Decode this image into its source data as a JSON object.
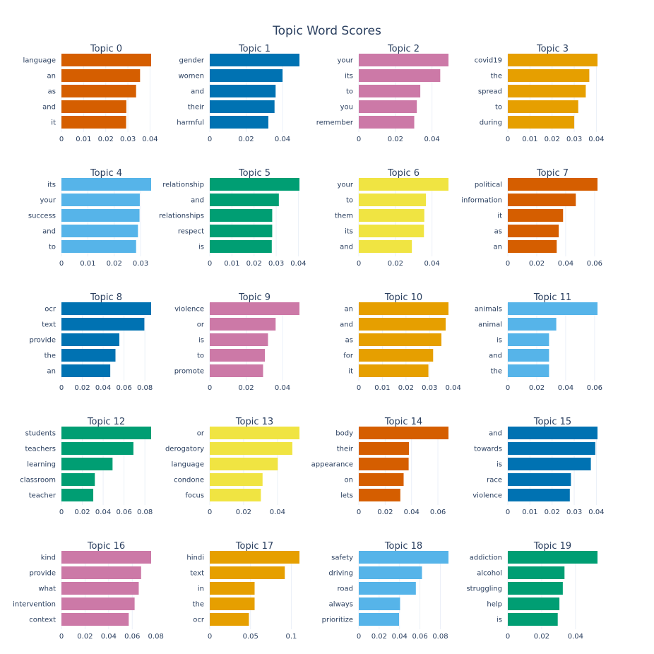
{
  "chart_data": {
    "title": "Topic Word Scores",
    "type": "bar",
    "orientation": "horizontal",
    "grid": true,
    "subplots": [
      {
        "title": "Topic 0",
        "color": "#D55E00",
        "words": [
          "language",
          "an",
          "as",
          "and",
          "it"
        ],
        "values": [
          0.0405,
          0.0355,
          0.0337,
          0.0293,
          0.0292
        ],
        "xlim": [
          0,
          0.0405
        ],
        "xticks": [
          0,
          0.01,
          0.02,
          0.03,
          0.04
        ],
        "xtick_labels": [
          "0",
          "0.01",
          "0.02",
          "0.03",
          "0.04"
        ]
      },
      {
        "title": "Topic 1",
        "color": "#0072B2",
        "words": [
          "gender",
          "women",
          "and",
          "their",
          "harmful"
        ],
        "values": [
          0.0493,
          0.04,
          0.0362,
          0.0356,
          0.0322
        ],
        "xlim": [
          0,
          0.0493
        ],
        "xticks": [
          0,
          0.02,
          0.04
        ],
        "xtick_labels": [
          "0",
          "0.02",
          "0.04"
        ]
      },
      {
        "title": "Topic 2",
        "color": "#CC79A7",
        "words": [
          "your",
          "its",
          "to",
          "you",
          "remember"
        ],
        "values": [
          0.049,
          0.0445,
          0.0336,
          0.0317,
          0.0303
        ],
        "xlim": [
          0,
          0.049
        ],
        "xticks": [
          0,
          0.02,
          0.04
        ],
        "xtick_labels": [
          "0",
          "0.02",
          "0.04"
        ]
      },
      {
        "title": "Topic 3",
        "color": "#E69F00",
        "words": [
          "covid19",
          "the",
          "spread",
          "to",
          "during"
        ],
        "values": [
          0.0405,
          0.0368,
          0.0352,
          0.0318,
          0.03
        ],
        "xlim": [
          0,
          0.0405
        ],
        "xticks": [
          0,
          0.01,
          0.02,
          0.03,
          0.04
        ],
        "xtick_labels": [
          "0",
          "0.01",
          "0.02",
          "0.03",
          "0.04"
        ]
      },
      {
        "title": "Topic 4",
        "color": "#56B4E9",
        "words": [
          "its",
          "your",
          "success",
          "and",
          "to"
        ],
        "values": [
          0.034,
          0.0297,
          0.0296,
          0.029,
          0.0283
        ],
        "xlim": [
          0,
          0.034
        ],
        "xticks": [
          0,
          0.01,
          0.02,
          0.03
        ],
        "xtick_labels": [
          "0",
          "0.01",
          "0.02",
          "0.03"
        ]
      },
      {
        "title": "Topic 5",
        "color": "#009E73",
        "words": [
          "relationship",
          "and",
          "relationships",
          "respect",
          "is"
        ],
        "values": [
          0.0405,
          0.0312,
          0.0282,
          0.0282,
          0.028
        ],
        "xlim": [
          0,
          0.0405
        ],
        "xticks": [
          0,
          0.01,
          0.02,
          0.03,
          0.04
        ],
        "xtick_labels": [
          "0",
          "0.01",
          "0.02",
          "0.03",
          "0.04"
        ]
      },
      {
        "title": "Topic 6",
        "color": "#F0E442",
        "words": [
          "your",
          "to",
          "them",
          "its",
          "and"
        ],
        "values": [
          0.049,
          0.0367,
          0.0358,
          0.0356,
          0.029
        ],
        "xlim": [
          0,
          0.049
        ],
        "xticks": [
          0,
          0.02,
          0.04
        ],
        "xtick_labels": [
          "0",
          "0.02",
          "0.04"
        ]
      },
      {
        "title": "Topic 7",
        "color": "#D55E00",
        "words": [
          "political",
          "information",
          "it",
          "as",
          "an"
        ],
        "values": [
          0.062,
          0.047,
          0.0382,
          0.0352,
          0.0338
        ],
        "xlim": [
          0,
          0.062
        ],
        "xticks": [
          0,
          0.02,
          0.04,
          0.06
        ],
        "xtick_labels": [
          "0",
          "0.02",
          "0.04",
          "0.06"
        ]
      },
      {
        "title": "Topic 8",
        "color": "#0072B2",
        "words": [
          "ocr",
          "text",
          "provide",
          "the",
          "an"
        ],
        "values": [
          0.086,
          0.0795,
          0.0555,
          0.0518,
          0.0468
        ],
        "xlim": [
          0,
          0.086
        ],
        "xticks": [
          0,
          0.02,
          0.04,
          0.06,
          0.08
        ],
        "xtick_labels": [
          "0",
          "0.02",
          "0.04",
          "0.06",
          "0.08"
        ]
      },
      {
        "title": "Topic 9",
        "color": "#CC79A7",
        "words": [
          "violence",
          "or",
          "is",
          "to",
          "promote"
        ],
        "values": [
          0.0493,
          0.0362,
          0.032,
          0.0303,
          0.0293
        ],
        "xlim": [
          0,
          0.0493
        ],
        "xticks": [
          0,
          0.02,
          0.04
        ],
        "xtick_labels": [
          "0",
          "0.02",
          "0.04"
        ]
      },
      {
        "title": "Topic 10",
        "color": "#E69F00",
        "words": [
          "an",
          "and",
          "as",
          "for",
          "it"
        ],
        "values": [
          0.038,
          0.0368,
          0.035,
          0.0315,
          0.0295
        ],
        "xlim": [
          0,
          0.038
        ],
        "xticks": [
          0,
          0.01,
          0.02,
          0.03,
          0.04
        ],
        "xtick_labels": [
          "0",
          "0.01",
          "0.02",
          "0.03",
          "0.04"
        ]
      },
      {
        "title": "Topic 11",
        "color": "#56B4E9",
        "words": [
          "animals",
          "animal",
          "is",
          "and",
          "the"
        ],
        "values": [
          0.062,
          0.0335,
          0.0285,
          0.0285,
          0.0285
        ],
        "xlim": [
          0,
          0.062
        ],
        "xticks": [
          0,
          0.02,
          0.04,
          0.06
        ],
        "xtick_labels": [
          "0",
          "0.02",
          "0.04",
          "0.06"
        ]
      },
      {
        "title": "Topic 12",
        "color": "#009E73",
        "words": [
          "students",
          "teachers",
          "learning",
          "classroom",
          "teacher"
        ],
        "values": [
          0.086,
          0.069,
          0.049,
          0.032,
          0.0305
        ],
        "xlim": [
          0,
          0.086
        ],
        "xticks": [
          0,
          0.02,
          0.04,
          0.06,
          0.08
        ],
        "xtick_labels": [
          "0",
          "0.02",
          "0.04",
          "0.06",
          "0.08"
        ]
      },
      {
        "title": "Topic 13",
        "color": "#F0E442",
        "words": [
          "or",
          "derogatory",
          "language",
          "condone",
          "focus"
        ],
        "values": [
          0.053,
          0.0488,
          0.0402,
          0.0312,
          0.0302
        ],
        "xlim": [
          0,
          0.053
        ],
        "xticks": [
          0,
          0.02,
          0.04
        ],
        "xtick_labels": [
          "0",
          "0.02",
          "0.04"
        ]
      },
      {
        "title": "Topic 14",
        "color": "#D55E00",
        "words": [
          "body",
          "their",
          "appearance",
          "on",
          "lets"
        ],
        "values": [
          0.068,
          0.038,
          0.0378,
          0.034,
          0.0315
        ],
        "xlim": [
          0,
          0.068
        ],
        "xticks": [
          0,
          0.02,
          0.04,
          0.06
        ],
        "xtick_labels": [
          "0",
          "0.02",
          "0.04",
          "0.06"
        ]
      },
      {
        "title": "Topic 15",
        "color": "#0072B2",
        "words": [
          "and",
          "towards",
          "is",
          "race",
          "violence"
        ],
        "values": [
          0.0405,
          0.0395,
          0.0375,
          0.0285,
          0.028
        ],
        "xlim": [
          0,
          0.0405
        ],
        "xticks": [
          0,
          0.01,
          0.02,
          0.03,
          0.04
        ],
        "xtick_labels": [
          "0",
          "0.01",
          "0.02",
          "0.03",
          "0.04"
        ]
      },
      {
        "title": "Topic 16",
        "color": "#CC79A7",
        "words": [
          "kind",
          "provide",
          "what",
          "intervention",
          "context"
        ],
        "values": [
          0.076,
          0.0675,
          0.0655,
          0.062,
          0.057
        ],
        "xlim": [
          0,
          0.076
        ],
        "xticks": [
          0,
          0.02,
          0.04,
          0.06,
          0.08
        ],
        "xtick_labels": [
          "0",
          "0.02",
          "0.04",
          "0.06",
          "0.08"
        ]
      },
      {
        "title": "Topic 17",
        "color": "#E69F00",
        "words": [
          "hindi",
          "text",
          "in",
          "the",
          "ocr"
        ],
        "values": [
          0.11,
          0.092,
          0.055,
          0.055,
          0.048
        ],
        "xlim": [
          0,
          0.11
        ],
        "xticks": [
          0,
          0.05,
          0.1
        ],
        "xtick_labels": [
          "0",
          "0.05",
          "0.1"
        ]
      },
      {
        "title": "Topic 18",
        "color": "#56B4E9",
        "words": [
          "safety",
          "driving",
          "road",
          "always",
          "prioritize"
        ],
        "values": [
          0.088,
          0.062,
          0.056,
          0.0405,
          0.0395
        ],
        "xlim": [
          0,
          0.088
        ],
        "xticks": [
          0,
          0.02,
          0.04,
          0.06,
          0.08
        ],
        "xtick_labels": [
          "0",
          "0.02",
          "0.04",
          "0.06",
          "0.08"
        ]
      },
      {
        "title": "Topic 19",
        "color": "#009E73",
        "words": [
          "addiction",
          "alcohol",
          "struggling",
          "help",
          "is"
        ],
        "values": [
          0.053,
          0.0335,
          0.0325,
          0.0305,
          0.0295
        ],
        "xlim": [
          0,
          0.053
        ],
        "xticks": [
          0,
          0.02,
          0.04
        ],
        "xtick_labels": [
          "0",
          "0.02",
          "0.04"
        ]
      }
    ]
  }
}
